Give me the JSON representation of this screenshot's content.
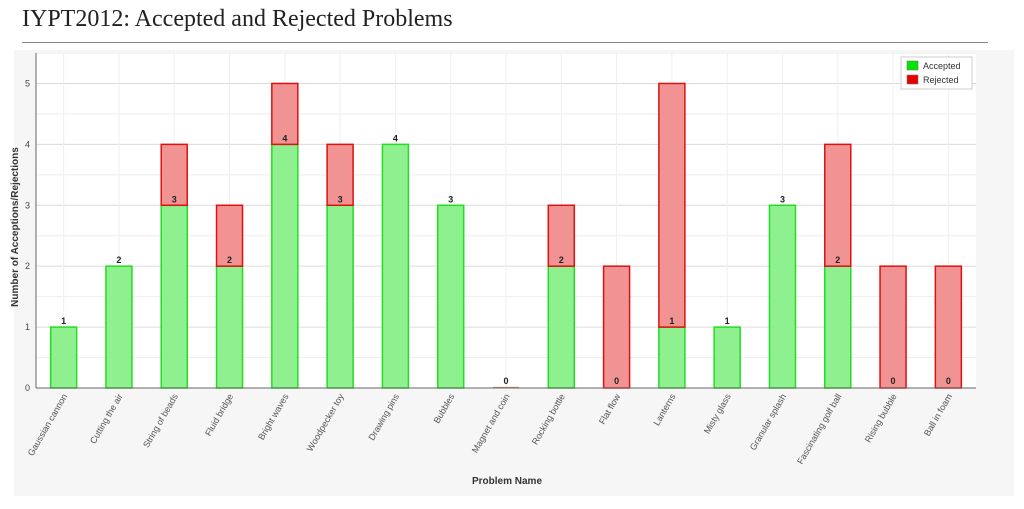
{
  "page": {
    "title": "IYPT2012: Accepted and Rejected Problems"
  },
  "chart_data": {
    "type": "bar",
    "stacked": true,
    "title": "",
    "xlabel": "Problem Name",
    "ylabel": "Number of Acceptions/Rejections",
    "ylim": [
      0,
      5.5
    ],
    "yticks": [
      0,
      1,
      2,
      3,
      4,
      5
    ],
    "grid": true,
    "legend_position": "top-right",
    "categories": [
      "Gaussian cannon",
      "Cutting the air",
      "String of beads",
      "Fluid bridge",
      "Bright waves",
      "Woodpecker toy",
      "Drawing pins",
      "Bubbles",
      "Magnet and coin",
      "Rocking bottle",
      "Flat flow",
      "Lanterns",
      "Misty glass",
      "Granular splash",
      "Fascinating golf ball",
      "Rising bubble",
      "Ball in foam"
    ],
    "series": [
      {
        "name": "Accepted",
        "values": [
          1,
          2,
          3,
          2,
          4,
          3,
          4,
          3,
          0,
          2,
          0,
          1,
          1,
          3,
          2,
          0,
          0
        ],
        "fill": "#8ef08e",
        "stroke": "#22dd22",
        "legend_color": "#00e600"
      },
      {
        "name": "Rejected",
        "values": [
          0,
          0,
          1,
          1,
          1,
          1,
          0,
          0,
          0,
          1,
          2,
          4,
          0,
          0,
          2,
          2,
          2
        ],
        "fill": "#f29393",
        "stroke": "#dd1111",
        "legend_color": "#e60000"
      }
    ],
    "data_labels": [
      "1",
      "2",
      "3",
      "2",
      "4",
      "3",
      "4",
      "3",
      "0",
      "2",
      "0",
      "1",
      "1",
      "3",
      "2",
      "0",
      "0"
    ]
  }
}
